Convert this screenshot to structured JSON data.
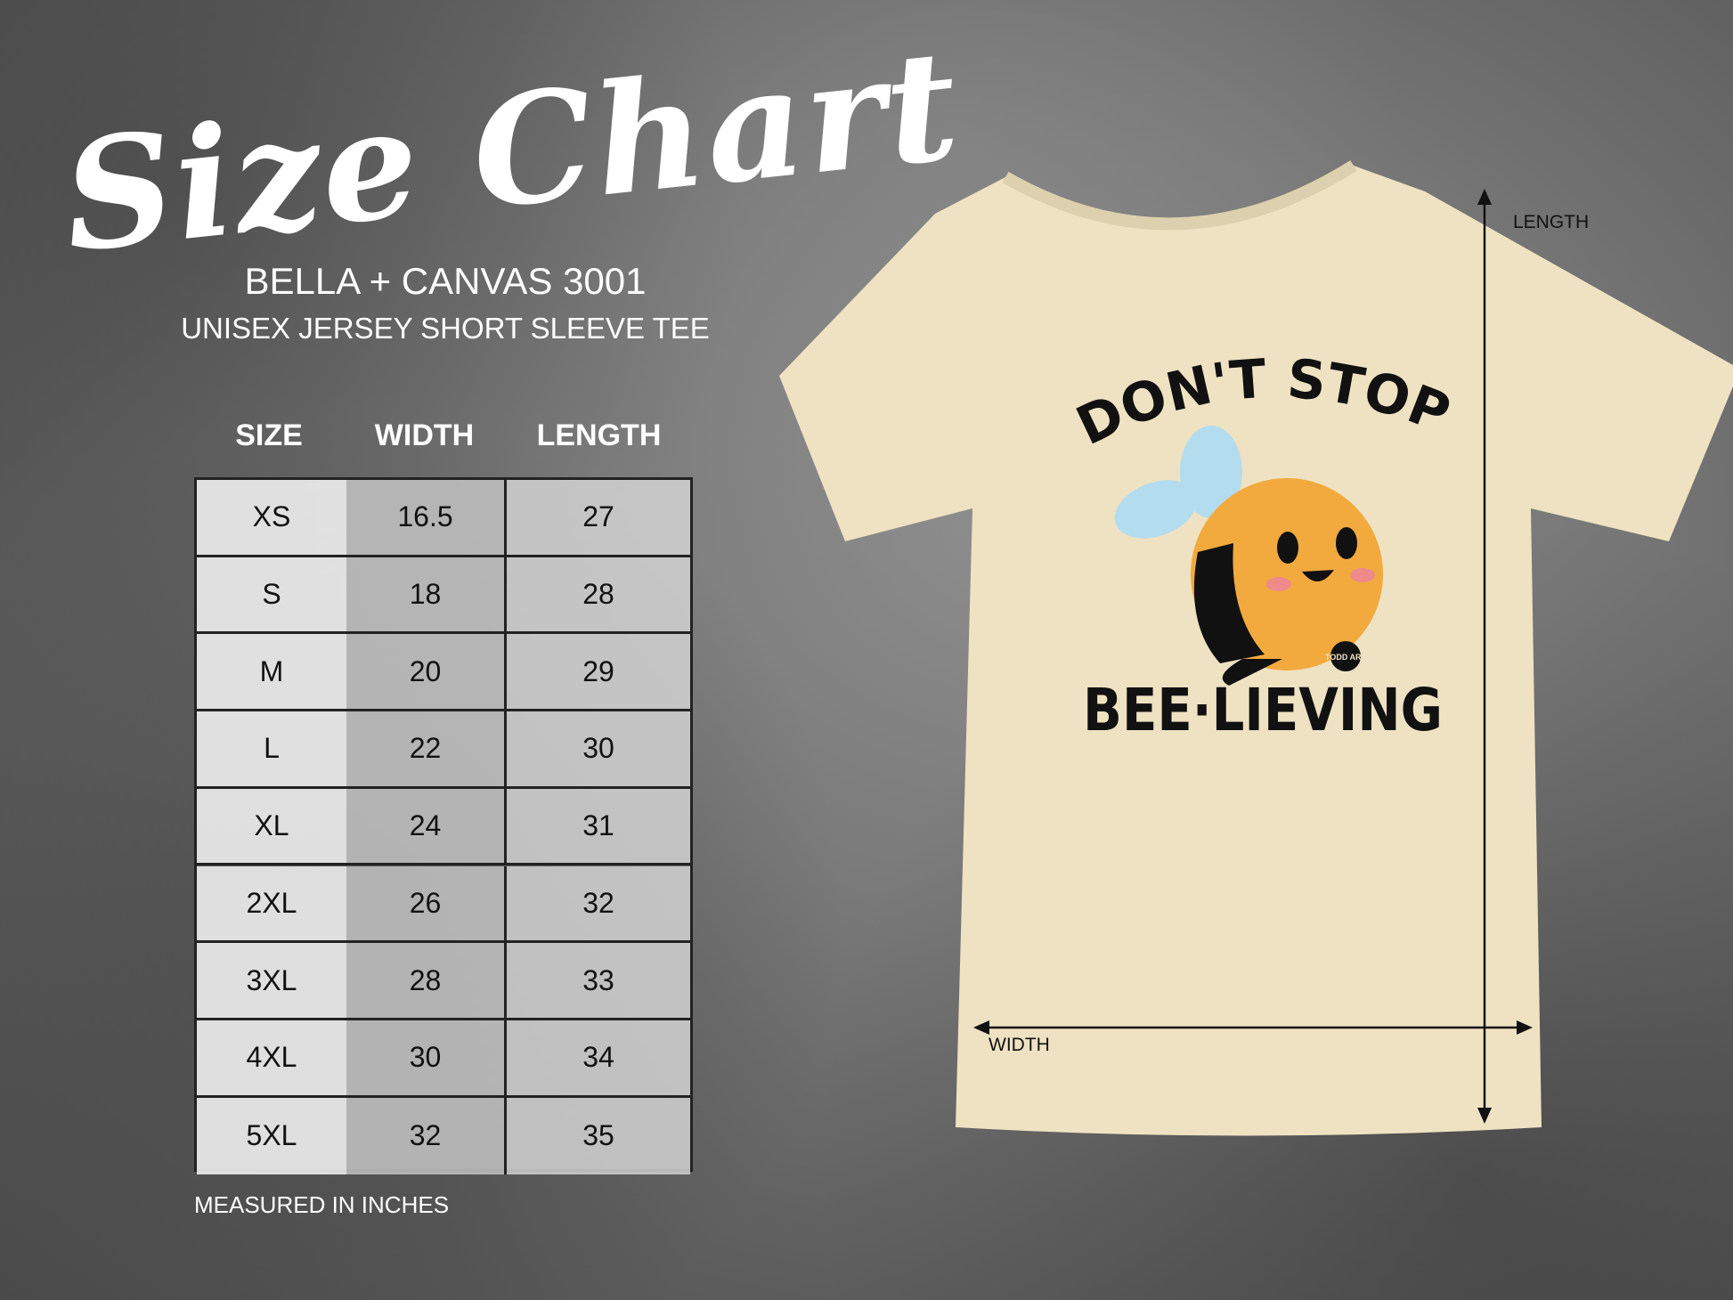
{
  "header": {
    "title": "Size Chart",
    "brand": "BELLA + CANVAS 3001",
    "subtitle": "UNISEX JERSEY SHORT SLEEVE TEE"
  },
  "table": {
    "columns": [
      "SIZE",
      "WIDTH",
      "LENGTH"
    ],
    "rows": [
      [
        "XS",
        "16.5",
        "27"
      ],
      [
        "S",
        "18",
        "28"
      ],
      [
        "M",
        "20",
        "29"
      ],
      [
        "L",
        "22",
        "30"
      ],
      [
        "XL",
        "24",
        "31"
      ],
      [
        "2XL",
        "26",
        "32"
      ],
      [
        "3XL",
        "28",
        "33"
      ],
      [
        "4XL",
        "30",
        "34"
      ],
      [
        "5XL",
        "32",
        "35"
      ]
    ]
  },
  "note": "MEASURED IN INCHES",
  "shirt": {
    "color": "#efe2c2",
    "design_top": "DON'T STOP",
    "design_bottom": "BEE·LIEVING",
    "logo": "TODD ART",
    "length_label": "LENGTH",
    "width_label": "WIDTH"
  }
}
